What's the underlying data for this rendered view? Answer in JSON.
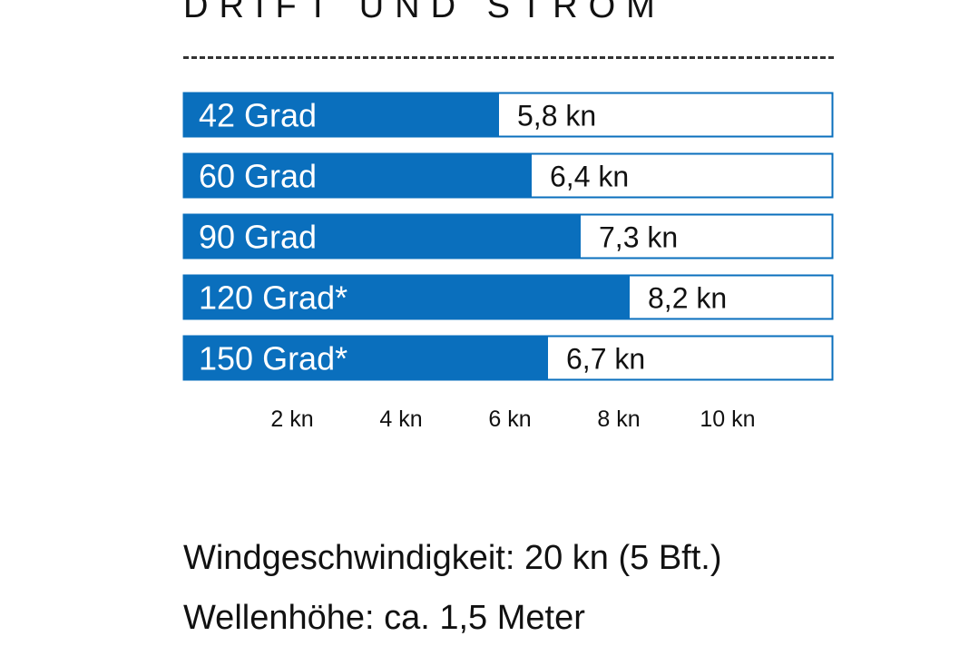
{
  "title": "DRIFT UND STROM",
  "colors": {
    "bar_fill": "#0a6fbd",
    "bar_border": "#0a6fbd",
    "track_fill": "#ffffff",
    "label_inside": "#ffffff",
    "label_value": "#111111"
  },
  "chart_data": {
    "type": "bar",
    "orientation": "horizontal",
    "categories": [
      "42 Grad",
      "60 Grad",
      "90 Grad",
      "120 Grad*",
      "150 Grad*"
    ],
    "values": [
      5.8,
      6.4,
      7.3,
      8.2,
      6.7
    ],
    "value_labels": [
      "5,8 kn",
      "6,4 kn",
      "7,3 kn",
      "8,2 kn",
      "6,7 kn"
    ],
    "x_ticks": [
      2,
      4,
      6,
      8,
      10
    ],
    "x_tick_labels": [
      "2 kn",
      "4 kn",
      "6 kn",
      "8 kn",
      "10 kn"
    ],
    "xlim": [
      0,
      12
    ],
    "grid": false,
    "title": "DRIFT UND STROM",
    "xlabel": "",
    "ylabel": ""
  },
  "notes": {
    "wind": "Windgeschwindigkeit: 20 kn (5 Bft.)",
    "waves": "Wellenhöhe: ca. 1,5 Meter"
  }
}
